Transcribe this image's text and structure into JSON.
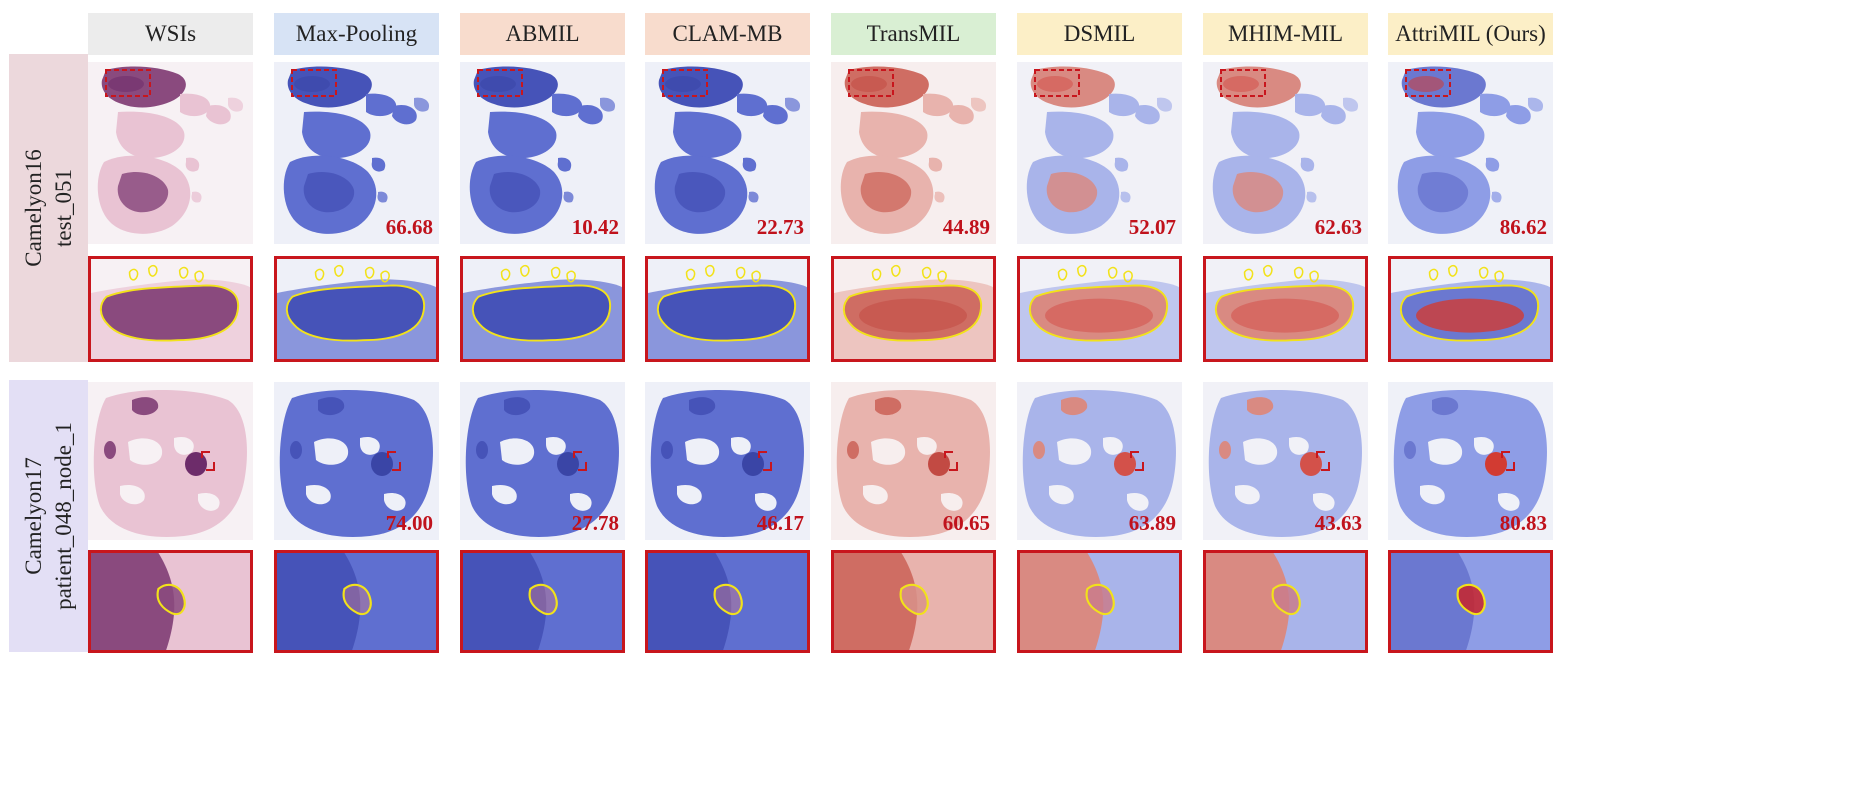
{
  "columns": [
    {
      "label": "WSIs",
      "bg": "#ececec",
      "style": "he"
    },
    {
      "label": "Max-Pooling",
      "bg": "#d7e3f5",
      "style": "blue"
    },
    {
      "label": "ABMIL",
      "bg": "#f8dccd",
      "style": "blue"
    },
    {
      "label": "CLAM-MB",
      "bg": "#f8dccd",
      "style": "blue"
    },
    {
      "label": "TransMIL",
      "bg": "#d9efd3",
      "style": "red"
    },
    {
      "label": "DSMIL",
      "bg": "#fcefc7",
      "style": "mixed"
    },
    {
      "label": "MHIM-MIL",
      "bg": "#fcefc7",
      "style": "mixed"
    },
    {
      "label": "AttriMIL (Ours)",
      "bg": "#fcefc7",
      "style": "hot"
    }
  ],
  "rows": [
    {
      "label_line1": "Camelyon16",
      "label_line2": "test_051",
      "bg": "#ecd8dc",
      "scores": [
        "",
        "66.68",
        "10.42",
        "22.73",
        "44.89",
        "52.07",
        "62.63",
        "86.62"
      ]
    },
    {
      "label_line1": "Camelyon17",
      "label_line2": "patient_048_node_1",
      "bg": "#e3dff5",
      "scores": [
        "",
        "74.00",
        "27.78",
        "46.17",
        "60.65",
        "63.89",
        "43.63",
        "80.83"
      ]
    }
  ],
  "colors": {
    "score": "#c0121c",
    "zoom_border": "#c8161d",
    "tumor_contour": "#f2e21a"
  }
}
